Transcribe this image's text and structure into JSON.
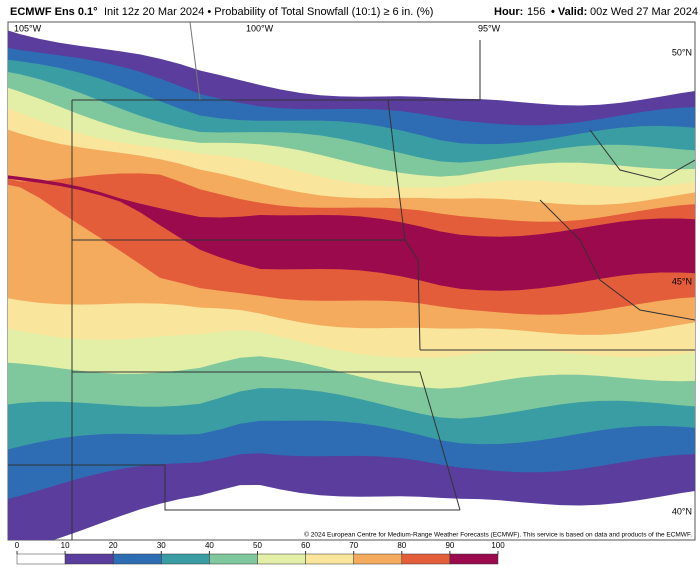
{
  "header": {
    "model": "ECMWF Ens 0.1°",
    "description": "Init 12z 20 Mar 2024 • Probability of Total Snowfall (10:1) ≥ 6 in. (%)",
    "hour_label": "Hour:",
    "hour": "156",
    "valid_label": "• Valid:",
    "valid": "00z Wed 27 Mar 2024"
  },
  "map": {
    "longitude_labels": [
      "105°W",
      "100°W",
      "95°W"
    ],
    "latitude_labels": [
      "50°N",
      "45°N",
      "40°N"
    ],
    "credit": "© 2024 European Centre for Medium-Range Weather Forecasts (ECMWF). This service is based on data and products of the ECMWF."
  },
  "colorbar": {
    "ticks": [
      0,
      10,
      20,
      30,
      40,
      50,
      60,
      70,
      80,
      90,
      100
    ],
    "colors": [
      "#ffffff",
      "#5a3d9c",
      "#2e6db3",
      "#3a9da3",
      "#7fc79d",
      "#e3efa6",
      "#f9e59b",
      "#f4ab5e",
      "#e45d3a",
      "#9a0a4c"
    ]
  }
}
